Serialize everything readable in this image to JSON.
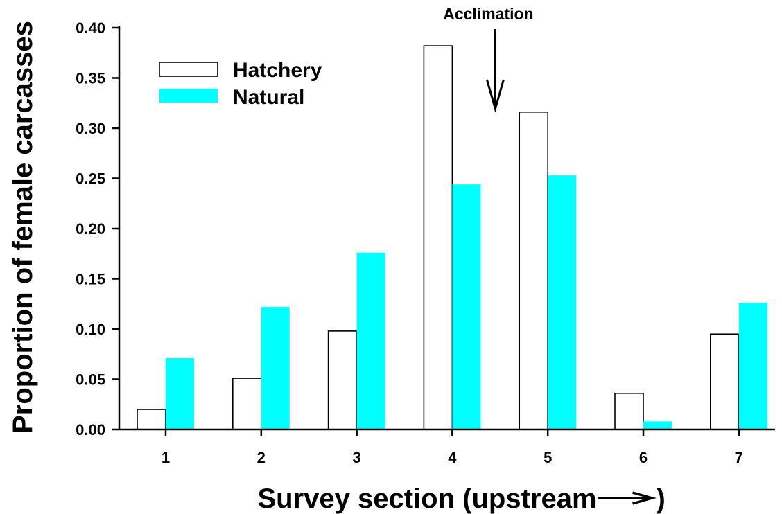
{
  "chart_data": {
    "type": "bar",
    "categories": [
      "1",
      "2",
      "3",
      "4",
      "5",
      "6",
      "7"
    ],
    "series": [
      {
        "name": "Hatchery",
        "values": [
          0.02,
          0.051,
          0.098,
          0.382,
          0.316,
          0.036,
          0.095
        ],
        "color": "#ffffff",
        "stroke": "#000000"
      },
      {
        "name": "Natural",
        "values": [
          0.071,
          0.122,
          0.176,
          0.244,
          0.253,
          0.008,
          0.126
        ],
        "color": "#00ffff",
        "stroke": "none"
      }
    ],
    "title": "",
    "xlabel": "Survey section (upstream",
    "ylabel": "Proportion of female carcasses",
    "ylim": [
      0,
      0.4
    ],
    "yticks": [
      "0.00",
      "0.05",
      "0.10",
      "0.15",
      "0.20",
      "0.25",
      "0.30",
      "0.35",
      "0.40"
    ],
    "legend_position": "top-left",
    "grid": false,
    "annotations": [
      {
        "text": "Acclimation",
        "x_category_position": 4.45,
        "arrow": "down"
      }
    ]
  }
}
